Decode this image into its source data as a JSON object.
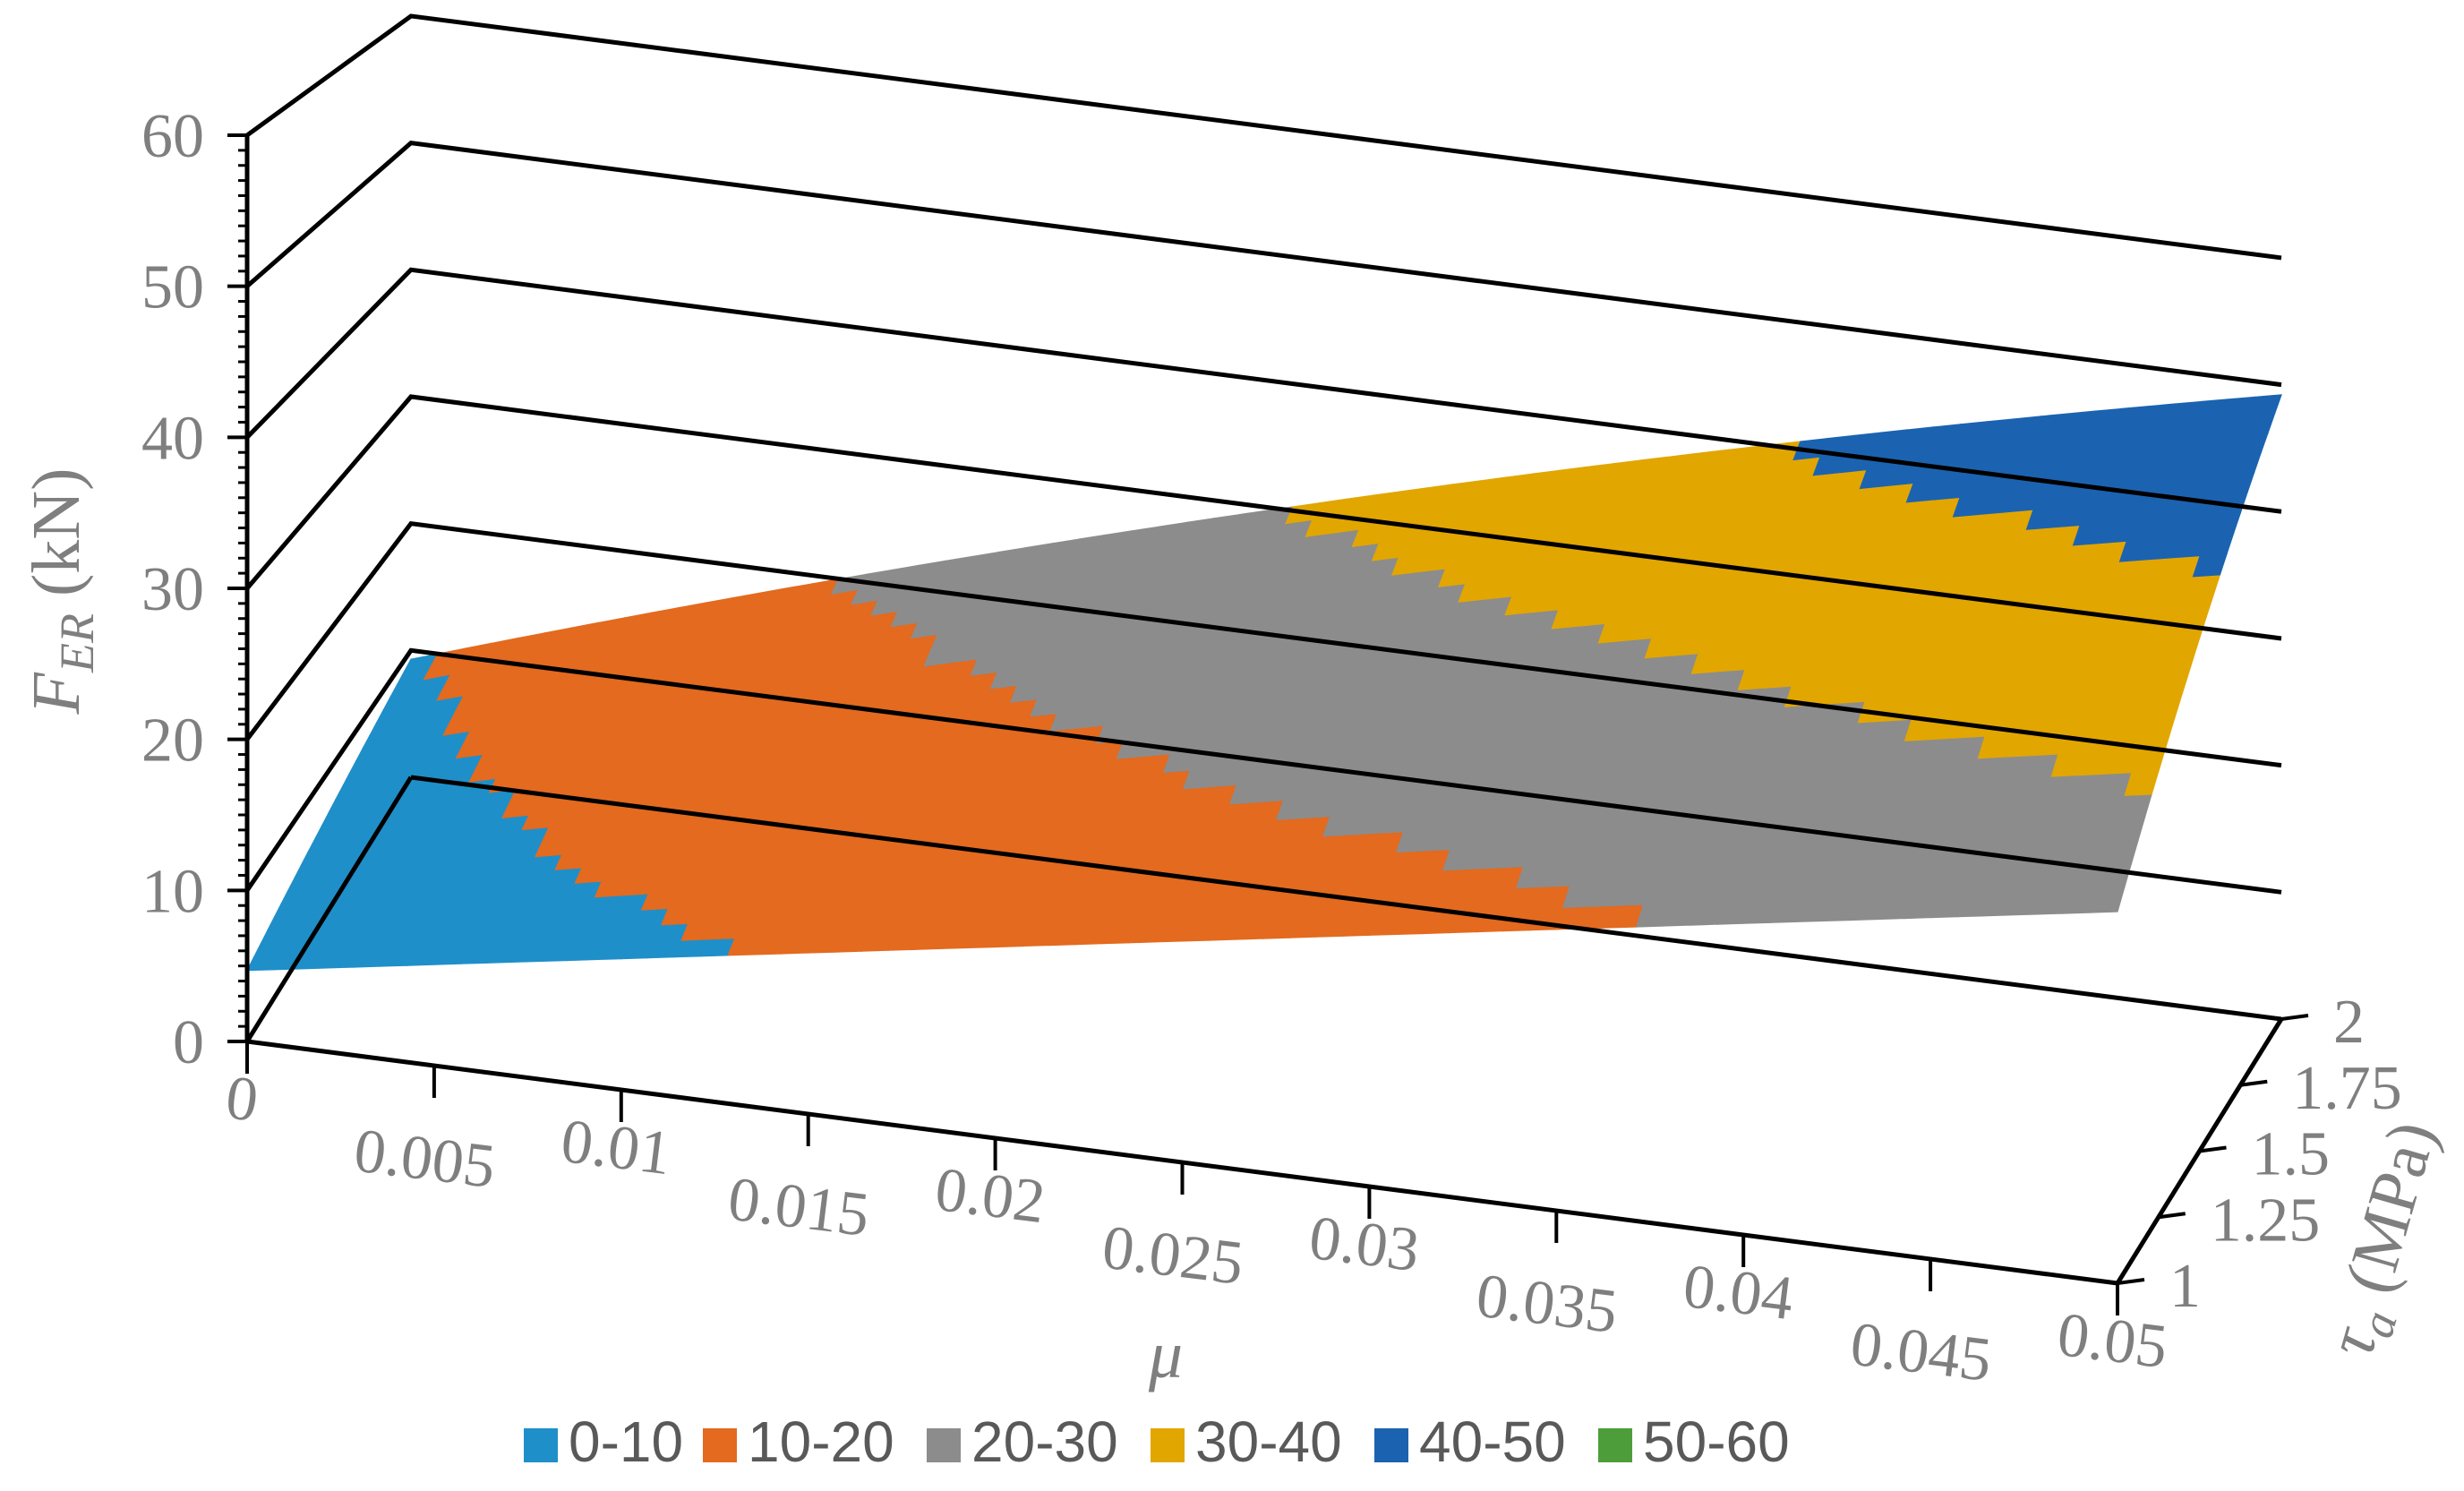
{
  "chart_data": {
    "type": "surface",
    "title": "",
    "xlabel": "μ",
    "ylabel_main": "F",
    "ylabel_sub": "ER",
    "ylabel_unit": " (kN)",
    "zlabel_main": "τ",
    "zlabel_sub": "a",
    "zlabel_unit": " (MPa)",
    "x_ticks": [
      "0",
      "0.005",
      "0.01",
      "0.015",
      "0.02",
      "0.025",
      "0.03",
      "0.035",
      "0.04",
      "0.045",
      "0.05"
    ],
    "y_ticks": [
      "0",
      "10",
      "20",
      "30",
      "40",
      "50",
      "60"
    ],
    "z_ticks": [
      "1",
      "1.25",
      "1.5",
      "1.75",
      "2"
    ],
    "xlim": [
      0,
      0.05
    ],
    "ylim": [
      0,
      60
    ],
    "zlim": [
      1,
      2
    ],
    "surface": {
      "corners": [
        {
          "mu": 0,
          "tau": 1,
          "F": 4.7
        },
        {
          "mu": 0.05,
          "tau": 1,
          "F": 24.6
        },
        {
          "mu": 0,
          "tau": 2,
          "F": 9.3
        },
        {
          "mu": 0.05,
          "tau": 2,
          "F": 49.2
        }
      ]
    },
    "legend": [
      {
        "label": "0-10",
        "color": "#1f8fc9"
      },
      {
        "label": "10-20",
        "color": "#e36a1f"
      },
      {
        "label": "20-30",
        "color": "#8c8c8c"
      },
      {
        "label": "30-40",
        "color": "#e2a600"
      },
      {
        "label": "40-50",
        "color": "#1b63b1"
      },
      {
        "label": "50-60",
        "color": "#4d9e3a"
      }
    ],
    "legend_position": "bottom",
    "grid": true
  }
}
